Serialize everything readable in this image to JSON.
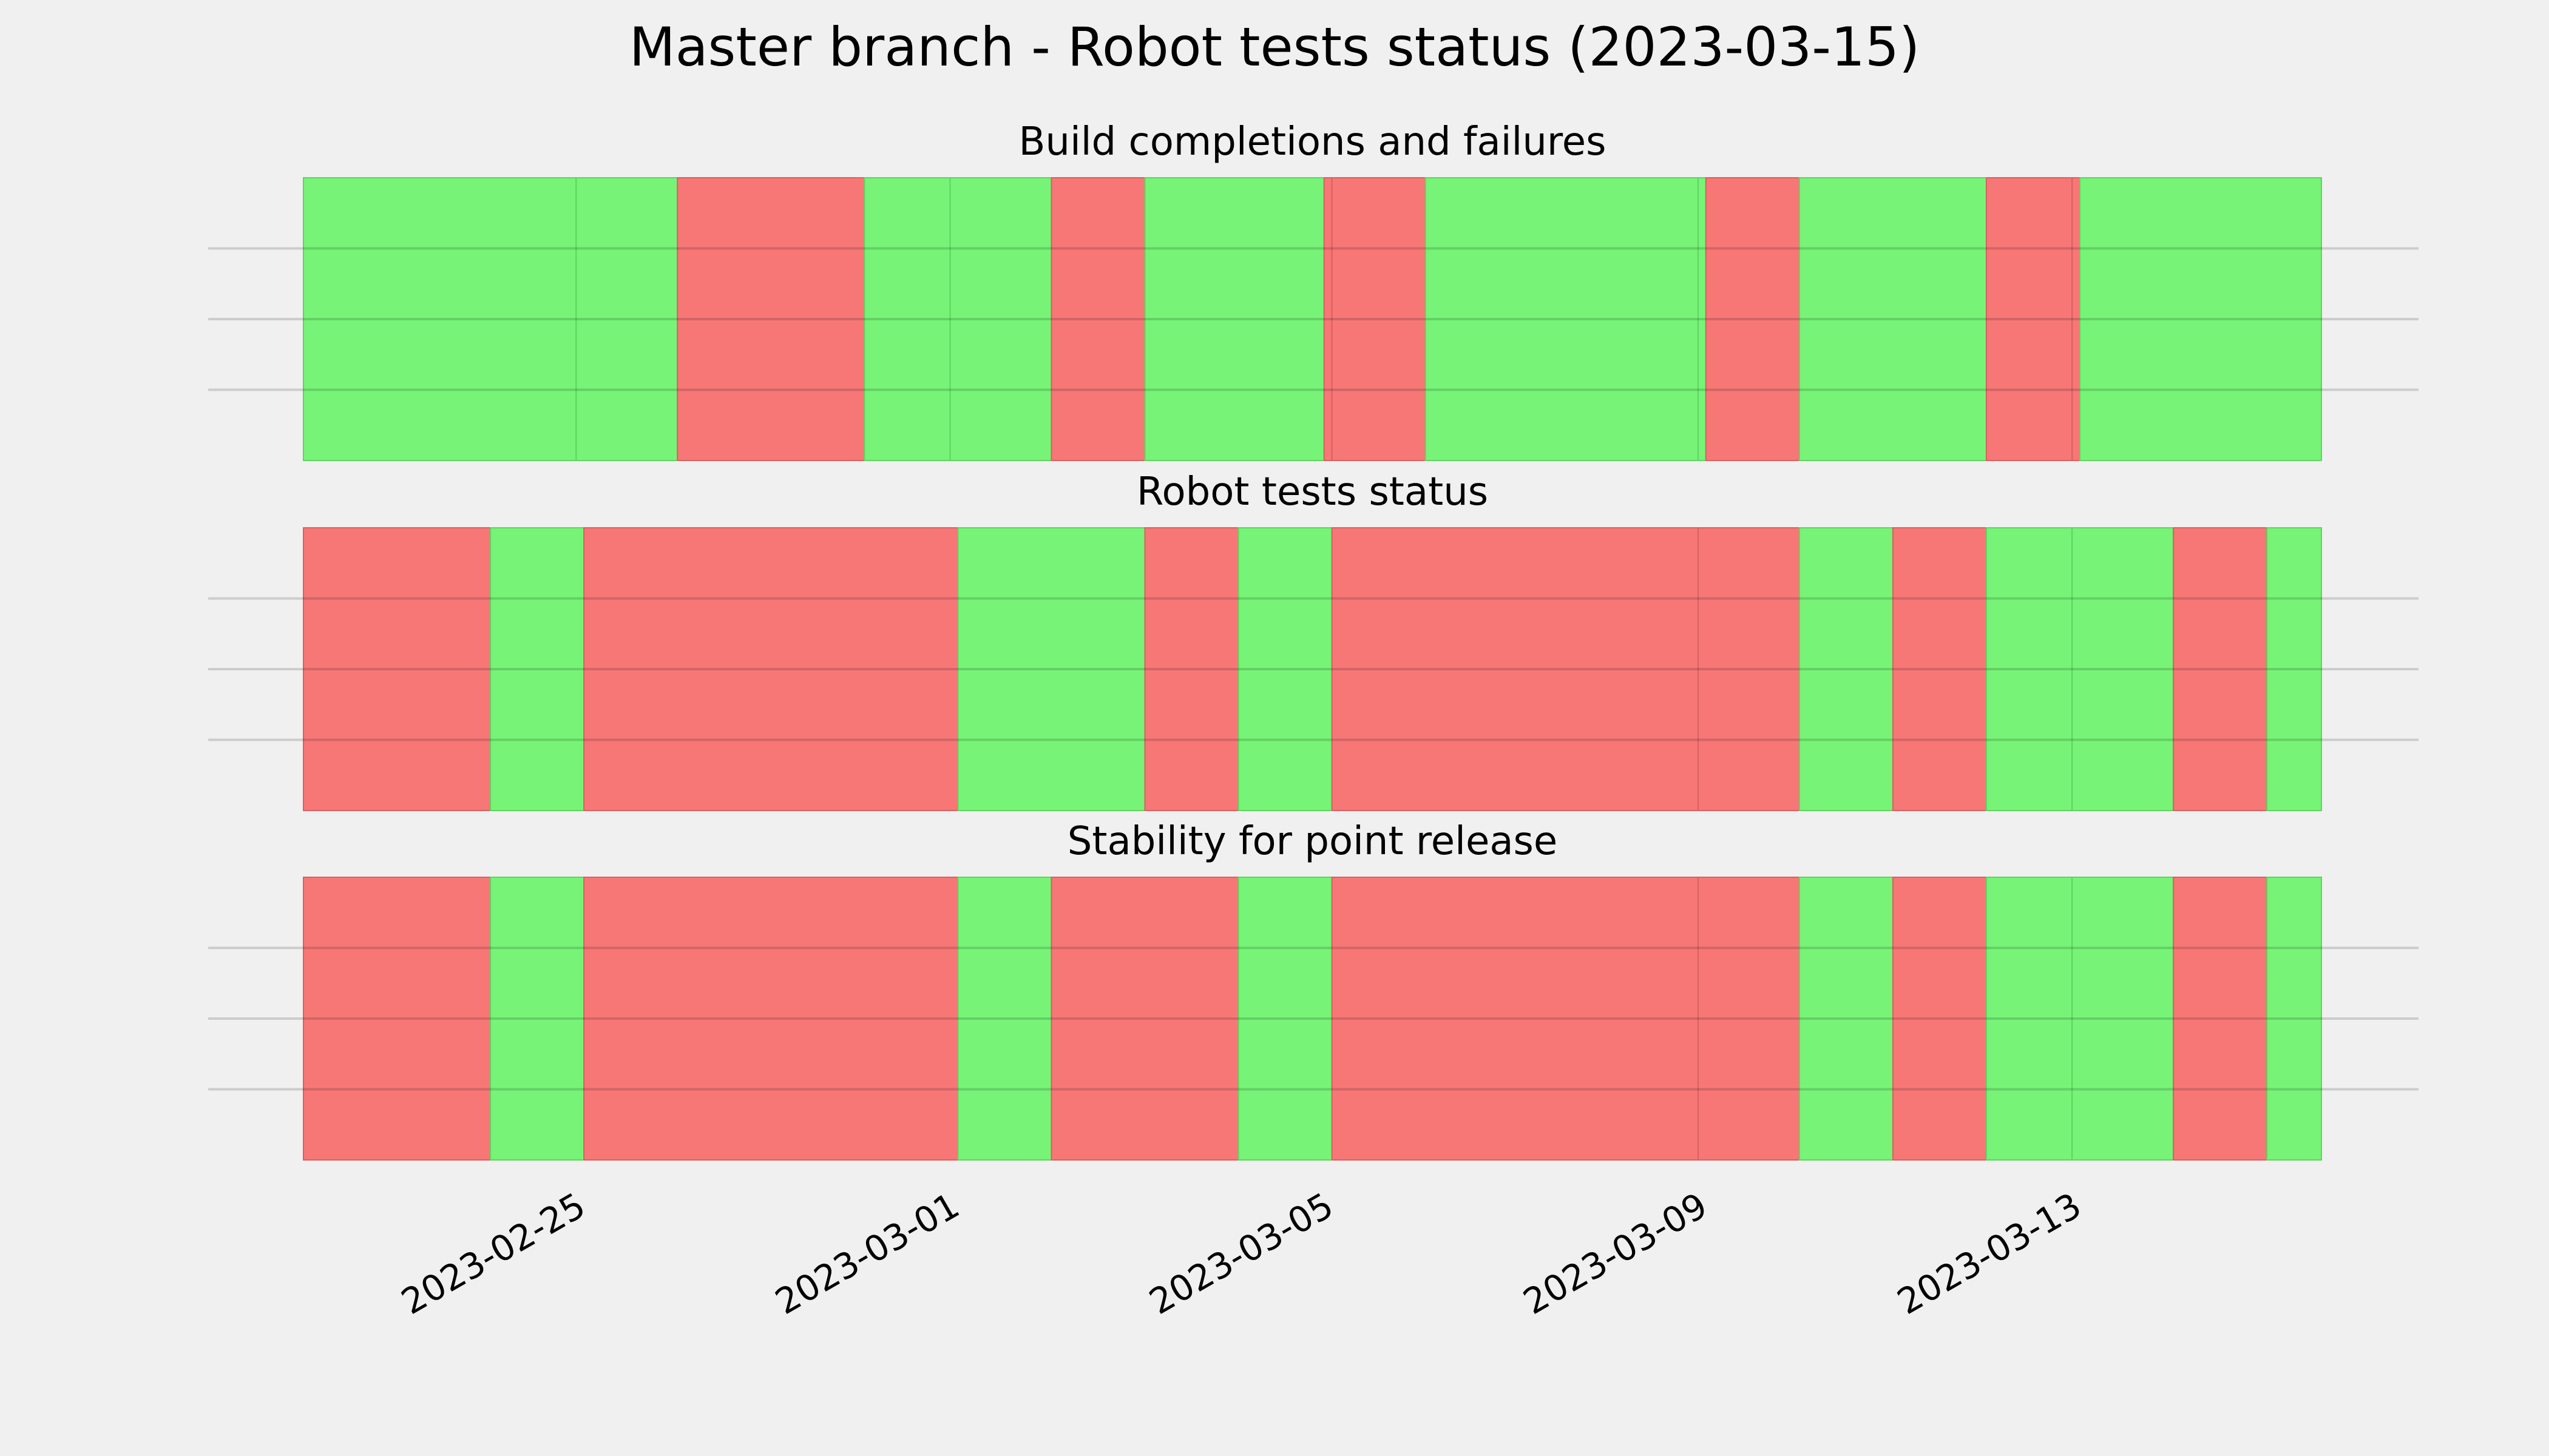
{
  "chart_data": {
    "type": "timeline",
    "title": "Master branch - Robot tests status (2023-03-15)",
    "x_range": [
      "2023-02-22",
      "2023-03-15T14:00"
    ],
    "x_ticks": [
      "2023-02-25",
      "2023-03-01",
      "2023-03-05",
      "2023-03-09",
      "2023-03-13"
    ],
    "status_colors": {
      "pass": "#77f477",
      "fail": "#f77777"
    },
    "grid": true,
    "panels": [
      {
        "title": "Build completions and failures",
        "segments": [
          {
            "start": "2023-02-22T00:00",
            "end": "2023-02-24T22:00",
            "status": "pass"
          },
          {
            "start": "2023-02-24T22:00",
            "end": "2023-02-26T00:00",
            "status": "pass"
          },
          {
            "start": "2023-02-26T00:00",
            "end": "2023-02-28T00:00",
            "status": "fail"
          },
          {
            "start": "2023-02-28T00:00",
            "end": "2023-02-28T22:00",
            "status": "pass"
          },
          {
            "start": "2023-02-28T22:00",
            "end": "2023-03-02T00:00",
            "status": "pass"
          },
          {
            "start": "2023-03-02T00:00",
            "end": "2023-03-03T00:00",
            "status": "fail"
          },
          {
            "start": "2023-03-03T00:00",
            "end": "2023-03-04T22:00",
            "status": "pass"
          },
          {
            "start": "2023-03-04T22:00",
            "end": "2023-03-05T00:00",
            "status": "fail"
          },
          {
            "start": "2023-03-05T00:00",
            "end": "2023-03-06T00:00",
            "status": "fail"
          },
          {
            "start": "2023-03-06T00:00",
            "end": "2023-03-08T22:00",
            "status": "pass"
          },
          {
            "start": "2023-03-08T22:00",
            "end": "2023-03-09T00:00",
            "status": "pass"
          },
          {
            "start": "2023-03-09T00:00",
            "end": "2023-03-10T00:00",
            "status": "fail"
          },
          {
            "start": "2023-03-10T00:00",
            "end": "2023-03-12T00:00",
            "status": "pass"
          },
          {
            "start": "2023-03-12T00:00",
            "end": "2023-03-12T22:00",
            "status": "fail"
          },
          {
            "start": "2023-03-12T22:00",
            "end": "2023-03-13T00:00",
            "status": "fail"
          },
          {
            "start": "2023-03-13T00:00",
            "end": "2023-03-15T14:00",
            "status": "pass"
          }
        ]
      },
      {
        "title": "Robot tests status",
        "segments": [
          {
            "start": "2023-02-22T00:00",
            "end": "2023-02-24T00:00",
            "status": "fail"
          },
          {
            "start": "2023-02-24T00:00",
            "end": "2023-02-25T00:00",
            "status": "pass"
          },
          {
            "start": "2023-02-25T00:00",
            "end": "2023-03-01T00:00",
            "status": "fail"
          },
          {
            "start": "2023-03-01T00:00",
            "end": "2023-03-03T00:00",
            "status": "pass"
          },
          {
            "start": "2023-03-03T00:00",
            "end": "2023-03-04T00:00",
            "status": "fail"
          },
          {
            "start": "2023-03-04T00:00",
            "end": "2023-03-05T00:00",
            "status": "pass"
          },
          {
            "start": "2023-03-05T00:00",
            "end": "2023-03-08T22:00",
            "status": "fail"
          },
          {
            "start": "2023-03-08T22:00",
            "end": "2023-03-10T00:00",
            "status": "fail"
          },
          {
            "start": "2023-03-10T00:00",
            "end": "2023-03-11T00:00",
            "status": "pass"
          },
          {
            "start": "2023-03-11T00:00",
            "end": "2023-03-12T00:00",
            "status": "fail"
          },
          {
            "start": "2023-03-12T00:00",
            "end": "2023-03-12T22:00",
            "status": "pass"
          },
          {
            "start": "2023-03-12T22:00",
            "end": "2023-03-14T00:00",
            "status": "pass"
          },
          {
            "start": "2023-03-14T00:00",
            "end": "2023-03-15T00:00",
            "status": "fail"
          },
          {
            "start": "2023-03-15T00:00",
            "end": "2023-03-15T14:00",
            "status": "pass"
          }
        ]
      },
      {
        "title": "Stability for point release",
        "segments": [
          {
            "start": "2023-02-22T00:00",
            "end": "2023-02-24T00:00",
            "status": "fail"
          },
          {
            "start": "2023-02-24T00:00",
            "end": "2023-02-25T00:00",
            "status": "pass"
          },
          {
            "start": "2023-02-25T00:00",
            "end": "2023-03-01T00:00",
            "status": "fail"
          },
          {
            "start": "2023-03-01T00:00",
            "end": "2023-03-02T00:00",
            "status": "pass"
          },
          {
            "start": "2023-03-02T00:00",
            "end": "2023-03-04T00:00",
            "status": "fail"
          },
          {
            "start": "2023-03-04T00:00",
            "end": "2023-03-05T00:00",
            "status": "pass"
          },
          {
            "start": "2023-03-05T00:00",
            "end": "2023-03-08T22:00",
            "status": "fail"
          },
          {
            "start": "2023-03-08T22:00",
            "end": "2023-03-10T00:00",
            "status": "fail"
          },
          {
            "start": "2023-03-10T00:00",
            "end": "2023-03-11T00:00",
            "status": "pass"
          },
          {
            "start": "2023-03-11T00:00",
            "end": "2023-03-12T00:00",
            "status": "fail"
          },
          {
            "start": "2023-03-12T00:00",
            "end": "2023-03-12T22:00",
            "status": "pass"
          },
          {
            "start": "2023-03-12T22:00",
            "end": "2023-03-14T00:00",
            "status": "pass"
          },
          {
            "start": "2023-03-14T00:00",
            "end": "2023-03-15T00:00",
            "status": "fail"
          },
          {
            "start": "2023-03-15T00:00",
            "end": "2023-03-15T14:00",
            "status": "pass"
          }
        ]
      }
    ]
  }
}
